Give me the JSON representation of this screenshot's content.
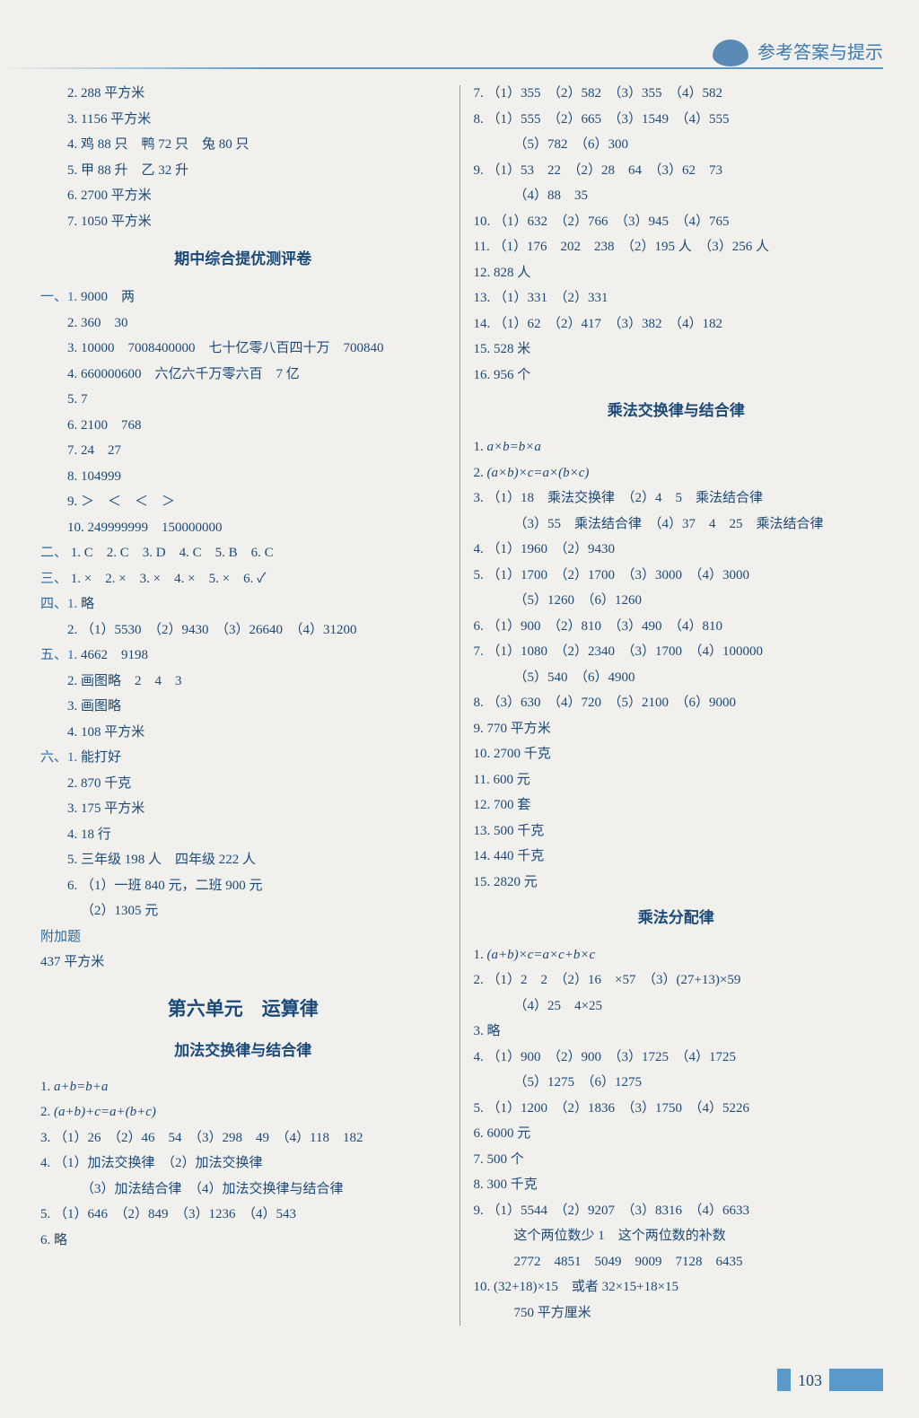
{
  "header": {
    "title": "参考答案与提示"
  },
  "footer": {
    "page": "103"
  },
  "left": {
    "lines": [
      {
        "n": "2.",
        "t": "288 平方米"
      },
      {
        "n": "3.",
        "t": "1156 平方米"
      },
      {
        "n": "4.",
        "t": "鸡 88 只　鸭 72 只　兔 80 只"
      },
      {
        "n": "5.",
        "t": "甲 88 升　乙 32 升"
      },
      {
        "n": "6.",
        "t": "2700 平方米"
      },
      {
        "n": "7.",
        "t": "1050 平方米"
      }
    ],
    "midterm_title": "期中综合提优测评卷",
    "section_one": [
      {
        "n": "一、1.",
        "t": "9000　两",
        "m": true
      },
      {
        "n": "2.",
        "t": "360　30"
      },
      {
        "n": "3.",
        "t": "10000　7008400000　七十亿零八百四十万　700840"
      },
      {
        "n": "4.",
        "t": "660000600　六亿六千万零六百　7 亿"
      },
      {
        "n": "5.",
        "t": "7"
      },
      {
        "n": "6.",
        "t": "2100　768"
      },
      {
        "n": "7.",
        "t": "24　27"
      },
      {
        "n": "8.",
        "t": "104999"
      },
      {
        "n": "9.",
        "t": "＞　＜　＜　＞"
      },
      {
        "n": "10.",
        "t": "249999999　150000000"
      }
    ],
    "section_two": {
      "n": "二、",
      "t": "1. C　2. C　3. D　4. C　5. B　6. C",
      "m": true
    },
    "section_three": {
      "n": "三、",
      "t": "1. ×　2. ×　3. ×　4. ×　5. ×　6. ✓",
      "m": true
    },
    "section_four": [
      {
        "n": "四、1.",
        "t": "略",
        "m": true
      },
      {
        "n": "2.",
        "t": "（1）5530　（2）9430　（3）26640　（4）31200"
      }
    ],
    "section_five": [
      {
        "n": "五、1.",
        "t": "4662　9198",
        "m": true
      },
      {
        "n": "2.",
        "t": "画图略　2　4　3"
      },
      {
        "n": "3.",
        "t": "画图略"
      },
      {
        "n": "4.",
        "t": "108 平方米"
      }
    ],
    "section_six": [
      {
        "n": "六、1.",
        "t": "能打好",
        "m": true
      },
      {
        "n": "2.",
        "t": "870 千克"
      },
      {
        "n": "3.",
        "t": "175 平方米"
      },
      {
        "n": "4.",
        "t": "18 行"
      },
      {
        "n": "5.",
        "t": "三年级 198 人　四年级 222 人"
      },
      {
        "n": "6.",
        "t": "（1）一班 840 元，二班 900 元"
      },
      {
        "n": "",
        "t": "（2）1305 元",
        "indent": true
      }
    ],
    "extra": [
      {
        "n": "附加题",
        "t": "",
        "m": true
      },
      {
        "n": "",
        "t": "437 平方米",
        "noindent": true
      }
    ],
    "unit_title": "第六单元　运算律",
    "sub1_title": "加法交换律与结合律",
    "sub1": [
      {
        "n": "1.",
        "t": "a+b=b+a",
        "noindent": true,
        "italic": true
      },
      {
        "n": "2.",
        "t": "(a+b)+c=a+(b+c)",
        "noindent": true,
        "italic": true
      },
      {
        "n": "3.",
        "t": "（1）26　（2）46　54　（3）298　49　（4）118　182",
        "noindent": true
      },
      {
        "n": "4.",
        "t": "（1）加法交换律　（2）加法交换律",
        "noindent": true
      },
      {
        "n": "",
        "t": "（3）加法结合律　（4）加法交换律与结合律",
        "indent": true
      },
      {
        "n": "5.",
        "t": "（1）646　（2）849　（3）1236　（4）543",
        "noindent": true
      },
      {
        "n": "6.",
        "t": "略",
        "noindent": true
      }
    ]
  },
  "right": {
    "lines1": [
      {
        "n": "7.",
        "t": "（1）355　（2）582　（3）355　（4）582"
      },
      {
        "n": "8.",
        "t": "（1）555　（2）665　（3）1549　（4）555"
      },
      {
        "n": "",
        "t": "（5）782　（6）300",
        "indent": true
      },
      {
        "n": "9.",
        "t": "（1）53　22　（2）28　64　（3）62　73"
      },
      {
        "n": "",
        "t": "（4）88　35",
        "indent": true
      },
      {
        "n": "10.",
        "t": "（1）632　（2）766　（3）945　（4）765"
      },
      {
        "n": "11.",
        "t": "（1）176　202　238　（2）195 人　（3）256 人"
      },
      {
        "n": "12.",
        "t": "828 人"
      },
      {
        "n": "13.",
        "t": "（1）331　（2）331"
      },
      {
        "n": "14.",
        "t": "（1）62　（2）417　（3）382　（4）182"
      },
      {
        "n": "15.",
        "t": "528 米"
      },
      {
        "n": "16.",
        "t": "956 个"
      }
    ],
    "sub2_title": "乘法交换律与结合律",
    "sub2": [
      {
        "n": "1.",
        "t": "a×b=b×a",
        "italic": true
      },
      {
        "n": "2.",
        "t": "(a×b)×c=a×(b×c)",
        "italic": true
      },
      {
        "n": "3.",
        "t": "（1）18　乘法交换律　（2）4　5　乘法结合律"
      },
      {
        "n": "",
        "t": "（3）55　乘法结合律　（4）37　4　25　乘法结合律",
        "indent": true
      },
      {
        "n": "4.",
        "t": "（1）1960　（2）9430"
      },
      {
        "n": "5.",
        "t": "（1）1700　（2）1700　（3）3000　（4）3000"
      },
      {
        "n": "",
        "t": "（5）1260　（6）1260",
        "indent": true
      },
      {
        "n": "6.",
        "t": "（1）900　（2）810　（3）490　（4）810"
      },
      {
        "n": "7.",
        "t": "（1）1080　（2）2340　（3）1700　（4）100000"
      },
      {
        "n": "",
        "t": "（5）540　（6）4900",
        "indent": true
      },
      {
        "n": "8.",
        "t": "（3）630　（4）720　（5）2100　（6）9000"
      },
      {
        "n": "9.",
        "t": "770 平方米"
      },
      {
        "n": "10.",
        "t": "2700 千克"
      },
      {
        "n": "11.",
        "t": "600 元"
      },
      {
        "n": "12.",
        "t": "700 套"
      },
      {
        "n": "13.",
        "t": "500 千克"
      },
      {
        "n": "14.",
        "t": "440 千克"
      },
      {
        "n": "15.",
        "t": "2820 元"
      }
    ],
    "sub3_title": "乘法分配律",
    "sub3": [
      {
        "n": "1.",
        "t": "(a+b)×c=a×c+b×c",
        "italic": true
      },
      {
        "n": "2.",
        "t": "（1）2　2　（2）16　×57　（3）(27+13)×59"
      },
      {
        "n": "",
        "t": "（4）25　4×25",
        "indent": true
      },
      {
        "n": "3.",
        "t": "略"
      },
      {
        "n": "4.",
        "t": "（1）900　（2）900　（3）1725　（4）1725"
      },
      {
        "n": "",
        "t": "（5）1275　（6）1275",
        "indent": true
      },
      {
        "n": "5.",
        "t": "（1）1200　（2）1836　（3）1750　（4）5226"
      },
      {
        "n": "6.",
        "t": "6000 元"
      },
      {
        "n": "7.",
        "t": "500 个"
      },
      {
        "n": "8.",
        "t": "300 千克"
      },
      {
        "n": "9.",
        "t": "（1）5544　（2）9207　（3）8316　（4）6633"
      },
      {
        "n": "",
        "t": "这个两位数少 1　这个两位数的补数",
        "indent": true
      },
      {
        "n": "",
        "t": "2772　4851　5049　9009　7128　6435",
        "indent": true
      },
      {
        "n": "10.",
        "t": "(32+18)×15　或者 32×15+18×15"
      },
      {
        "n": "",
        "t": "750 平方厘米",
        "indent": true
      }
    ]
  }
}
